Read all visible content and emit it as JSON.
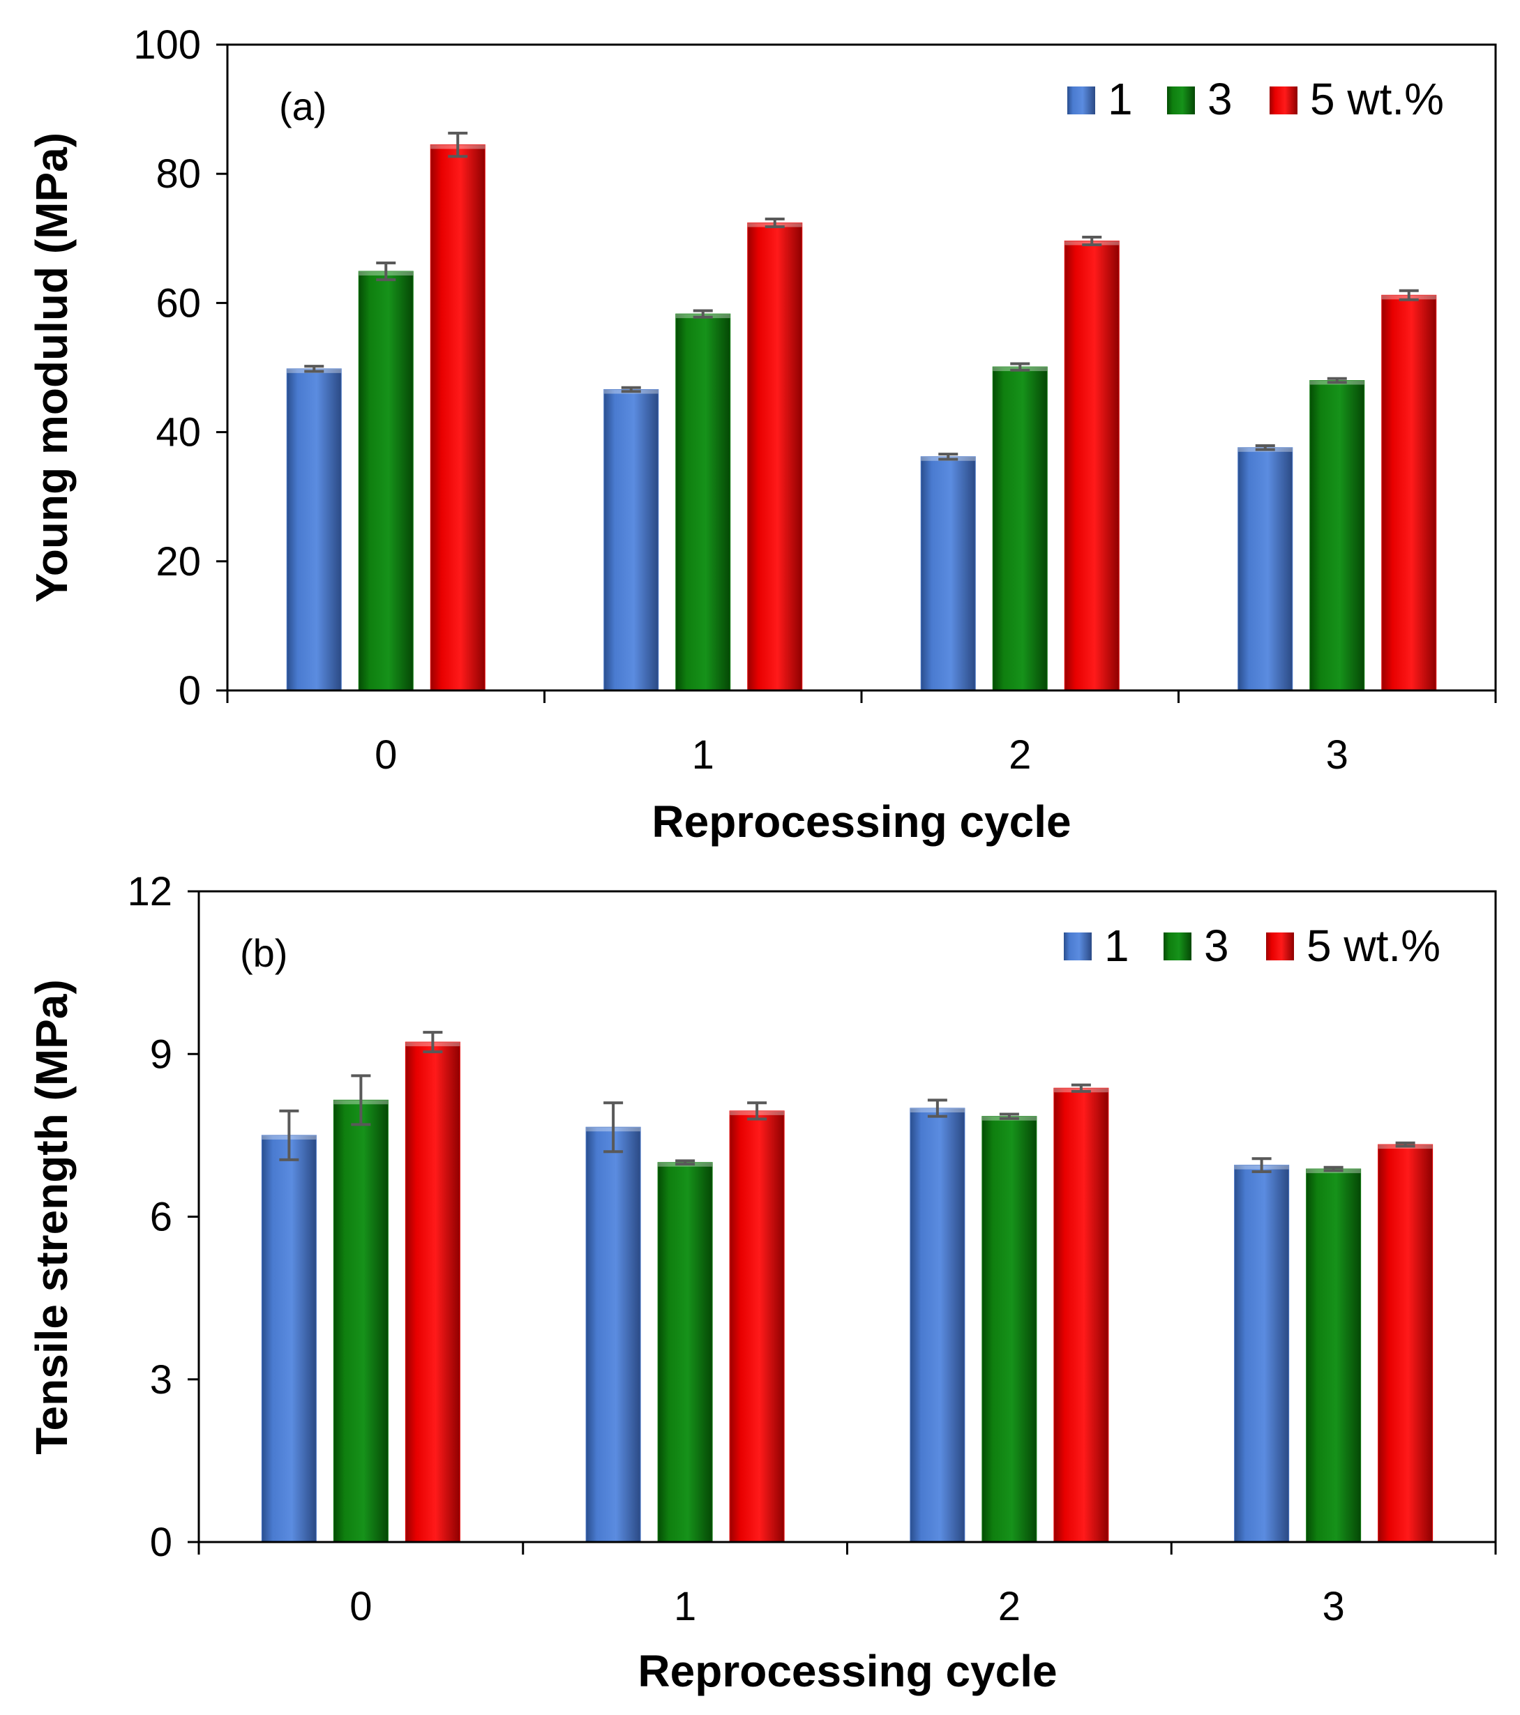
{
  "chart_data": [
    {
      "type": "bar",
      "panel_label": "(a)",
      "categories": [
        "0",
        "1",
        "2",
        "3"
      ],
      "series": [
        {
          "name": "1",
          "color": "#4472C4",
          "values": [
            49.8,
            46.6,
            36.2,
            37.6
          ],
          "errors": [
            0.4,
            0.3,
            0.4,
            0.3
          ]
        },
        {
          "name": "3",
          "color": "#0E7A0E",
          "values": [
            64.9,
            58.3,
            50.1,
            48.0
          ],
          "errors": [
            1.3,
            0.5,
            0.5,
            0.3
          ]
        },
        {
          "name": "5 wt.%",
          "color": "#E30000",
          "values": [
            84.5,
            72.4,
            69.6,
            61.2
          ],
          "errors": [
            1.8,
            0.6,
            0.6,
            0.7
          ]
        }
      ],
      "legend": [
        "1",
        "3",
        "5 wt.%"
      ],
      "legend_position": "top-right",
      "ylabel": "Young modulud (MPa)",
      "xlabel": "Reprocessing cycle",
      "ylim": [
        0,
        100
      ],
      "yticks": [
        "0",
        "20",
        "40",
        "60",
        "80",
        "100"
      ],
      "grid": false
    },
    {
      "type": "bar",
      "panel_label": "(b)",
      "categories": [
        "0",
        "1",
        "2",
        "3"
      ],
      "series": [
        {
          "name": "1",
          "color": "#4472C4",
          "values": [
            7.5,
            7.65,
            8.0,
            6.95
          ],
          "errors": [
            0.45,
            0.45,
            0.15,
            0.12
          ]
        },
        {
          "name": "3",
          "color": "#0E7A0E",
          "values": [
            8.15,
            7.0,
            7.85,
            6.88
          ],
          "errors": [
            0.45,
            0.03,
            0.04,
            0.03
          ]
        },
        {
          "name": "5 wt.%",
          "color": "#E30000",
          "values": [
            9.22,
            7.95,
            8.37,
            7.33
          ],
          "errors": [
            0.18,
            0.15,
            0.06,
            0.03
          ]
        }
      ],
      "legend": [
        "1",
        "3",
        "5 wt.%"
      ],
      "legend_position": "top-right",
      "ylabel": "Tensile strength (MPa)",
      "xlabel": "Reprocessing cycle",
      "ylim": [
        0,
        12
      ],
      "yticks": [
        "0",
        "3",
        "6",
        "9",
        "12"
      ],
      "grid": false
    }
  ]
}
